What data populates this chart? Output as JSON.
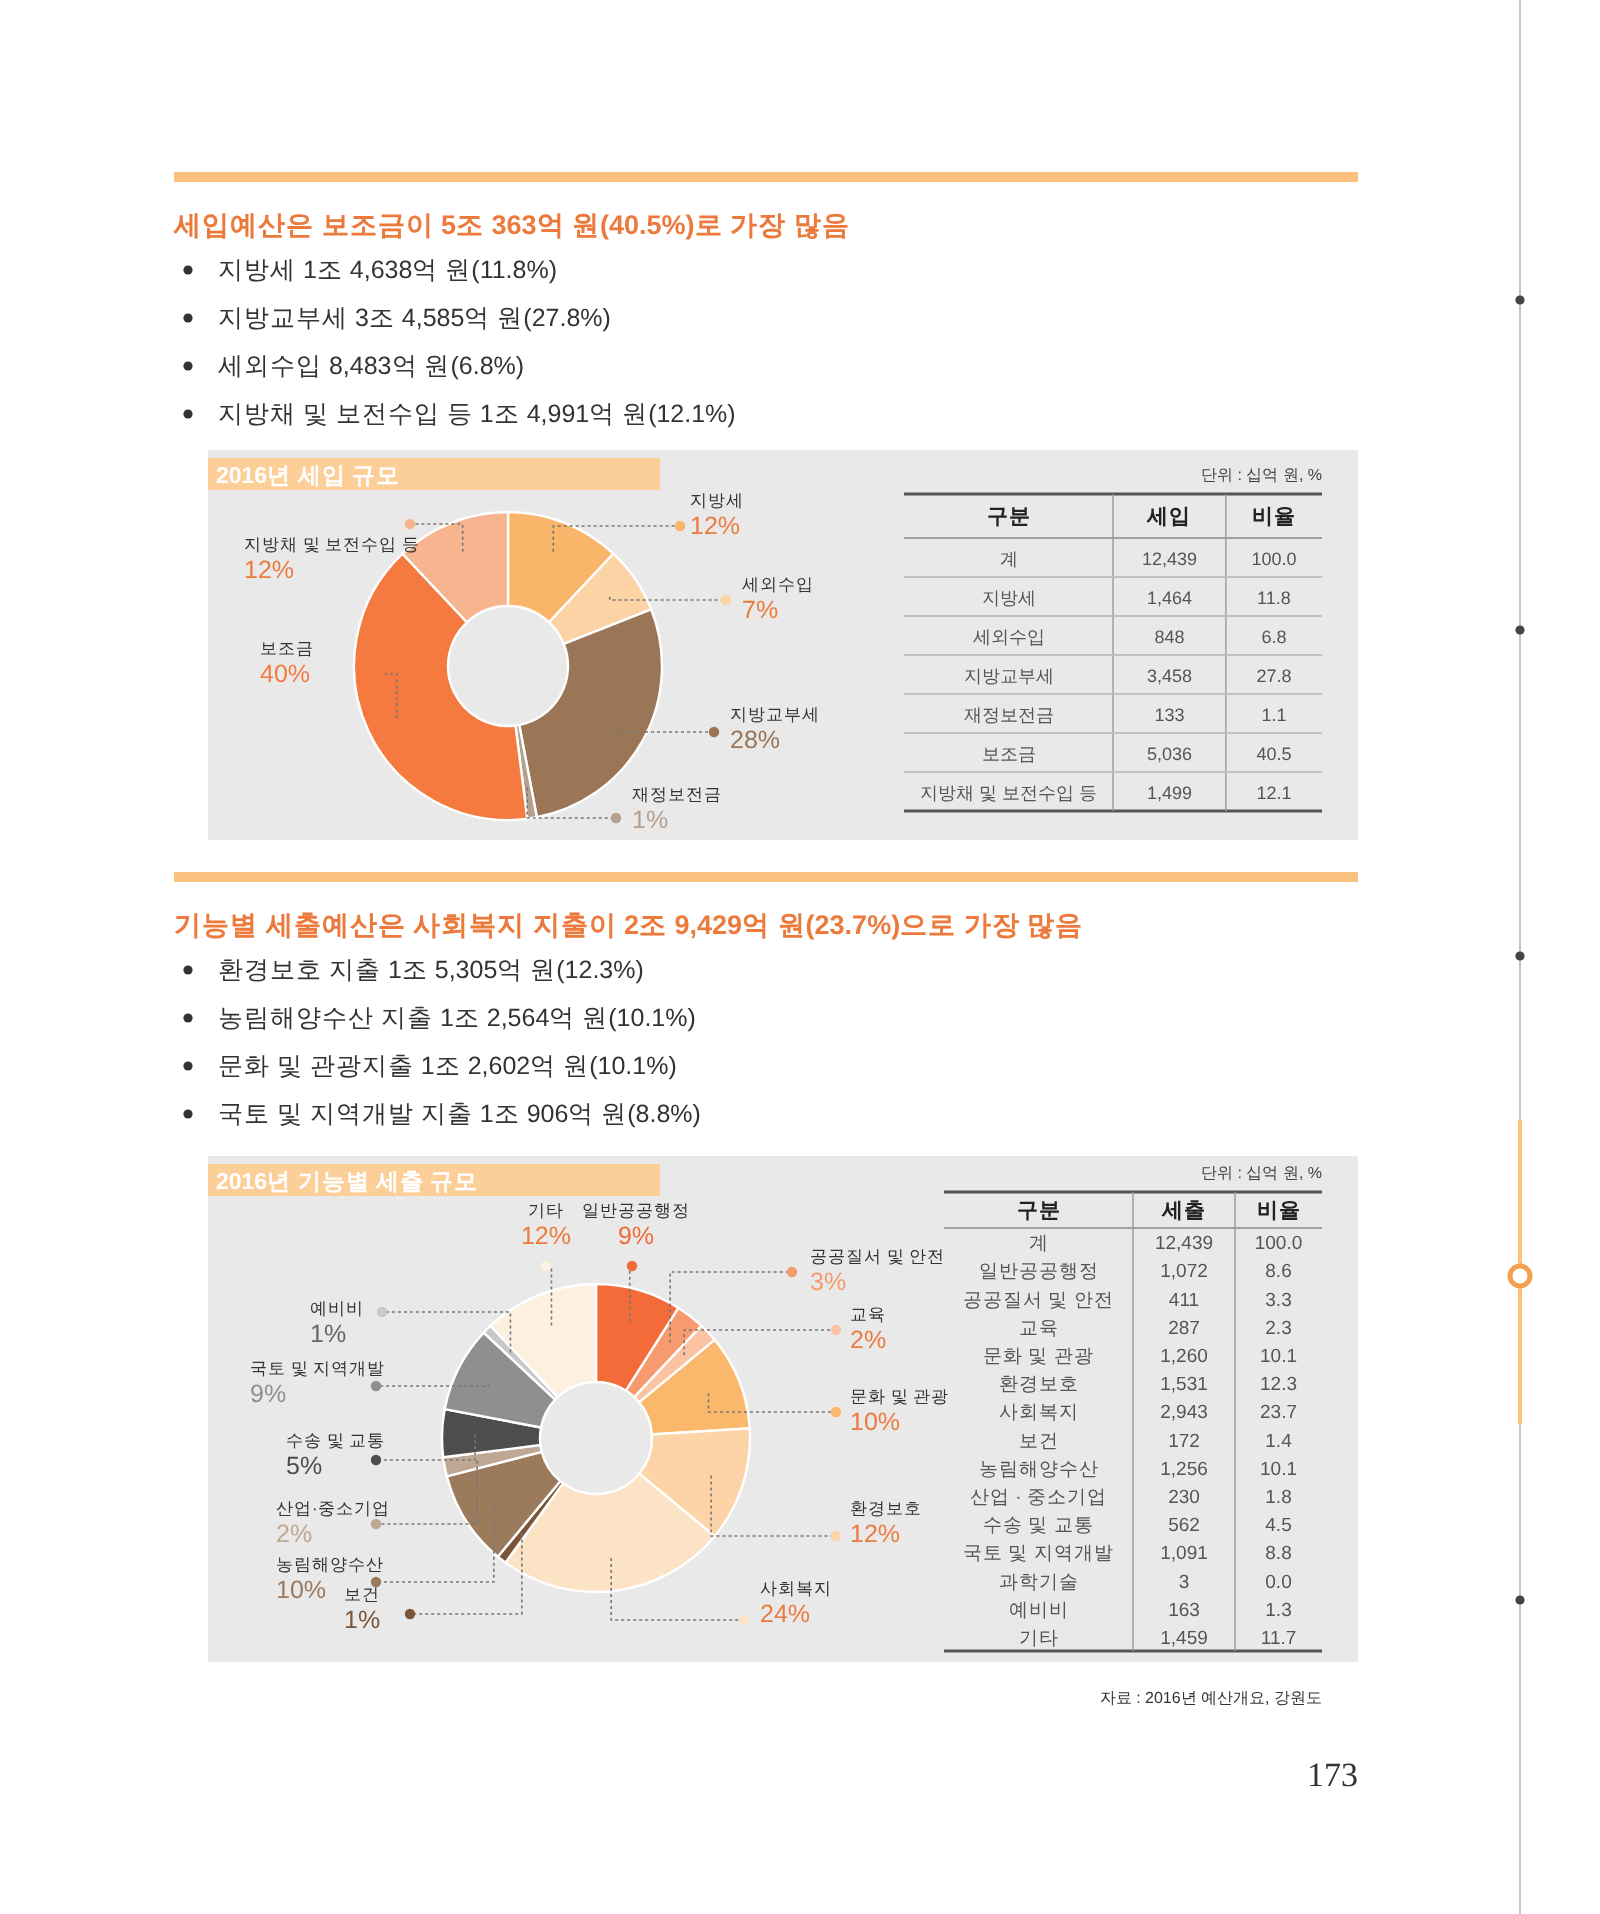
{
  "chart_data": [
    {
      "type": "other",
      "title": "세입예산은 보조금이 5조 363억 원(40.5%)로 가장 많음",
      "annotations": [
        "지방세 1조 4,638억 원(11.8%)",
        "지방교부세 3조 4,585억 원(27.8%)",
        "세외수입 8,483억 원(6.8%)",
        "지방채 및 보전수입 등 1조 4,991억 원(12.1%)"
      ]
    },
    {
      "type": "donut",
      "title": "2016년 세입 규모",
      "categories": [
        "지방세",
        "세외수입",
        "지방교부세",
        "재정보전금",
        "보조금",
        "지방채 및 보전수입 등"
      ],
      "values": [
        12,
        7,
        28,
        1,
        40,
        12
      ],
      "colors": [
        "#f9b56a",
        "#fcd3a4",
        "#9a7657",
        "#b5a08d",
        "#f47a3f",
        "#f7b58f"
      ],
      "value_labels": [
        "12%",
        "7%",
        "28%",
        "1%",
        "40%",
        "12%"
      ]
    },
    {
      "type": "other",
      "annotations": [
        "단위 : 십억 원, %",
        "구분",
        "세입",
        "비율",
        "계",
        "12,439",
        "100.0",
        "지방세",
        "1,464",
        "11.8",
        "세외수입",
        "848",
        "6.8",
        "지방교부세",
        "3,458",
        "27.8",
        "재정보전금",
        "133",
        "1.1",
        "보조금",
        "5,036",
        "40.5",
        "지방채 및 보전수입 등",
        "1,499",
        "12.1"
      ]
    },
    {
      "type": "other",
      "title": "기능별 세출예산은 사회복지 지출이 2조 9,429억 원(23.7%)으로 가장 많음",
      "annotations": [
        "환경보호 지출 1조 5,305억 원(12.3%)",
        "농림해양수산 지출 1조 2,564억 원(10.1%)",
        "문화 및 관광지출 1조 2,602억 원(10.1%)",
        "국토 및 지역개발 지출 1조 906억 원(8.8%)"
      ]
    },
    {
      "type": "donut",
      "title": "2016년 기능별 세출 규모",
      "categories": [
        "일반공공행정",
        "공공질서 및 안전",
        "교육",
        "문화 및 관광",
        "환경보호",
        "사회복지",
        "보건",
        "농림해양수산",
        "산업·중소기업",
        "수송 및 교통",
        "국토 및 지역개발",
        "예비비",
        "기타"
      ],
      "values": [
        9,
        3,
        2,
        10,
        12,
        24,
        1,
        10,
        2,
        5,
        9,
        1,
        12
      ],
      "colors": [
        "#f26b38",
        "#f79a6d",
        "#fbc3a2",
        "#f9b86b",
        "#fcd4a8",
        "#fde3c6",
        "#7a5538",
        "#9c7a5c",
        "#bfa893",
        "#4d4d4d",
        "#8f8f8f",
        "#c7c8ca",
        "#fef0de"
      ],
      "value_labels": [
        "9%",
        "3%",
        "2%",
        "10%",
        "12%",
        "24%",
        "1%",
        "10%",
        "2%",
        "5%",
        "9%",
        "1%",
        "12%"
      ]
    },
    {
      "type": "other",
      "annotations": [
        "단위 : 십억 원, %",
        "구분",
        "세출",
        "비율",
        "계",
        "12,439",
        "100.0",
        "일반공공행정",
        "1,072",
        "8.6",
        "공공질서 및 안전",
        "411",
        "3.3",
        "교육",
        "287",
        "2.3",
        "문화 및 관광",
        "1,260",
        "10.1",
        "환경보호",
        "1,531",
        "12.3",
        "사회복지",
        "2,943",
        "23.7",
        "보건",
        "172",
        "1.4",
        "농림해양수산",
        "1,256",
        "10.1",
        "산업 · 중소기업",
        "230",
        "1.8",
        "수송 및 교통",
        "562",
        "4.5",
        "국토 및 지역개발",
        "1,091",
        "8.8",
        "과학기술",
        "3",
        "0.0",
        "예비비",
        "163",
        "1.3",
        "기타",
        "1,459",
        "11.7",
        "자료 : 2016년 예산개요, 강원도"
      ]
    },
    {
      "type": "other",
      "annotations": [
        "173"
      ]
    }
  ]
}
